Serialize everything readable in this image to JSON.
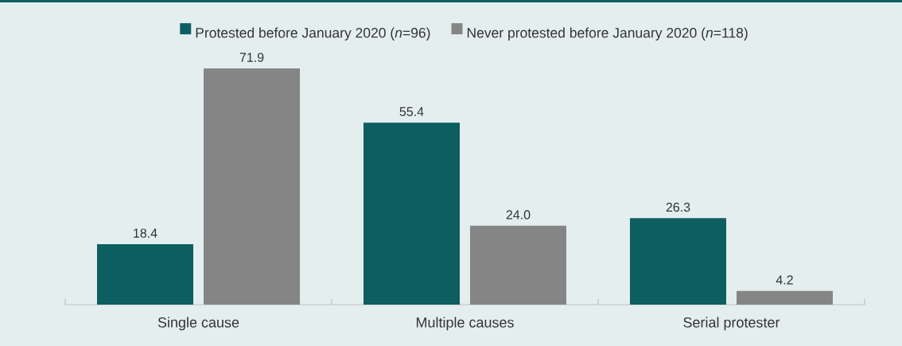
{
  "chart_data": {
    "type": "bar",
    "categories": [
      "Single cause",
      "Multiple causes",
      "Serial protester"
    ],
    "series": [
      {
        "name": "Protested before January 2020 (*n*=96)",
        "color": "#0d5e61",
        "values": [
          18.4,
          55.4,
          26.3
        ],
        "value_labels": [
          "18.4",
          "55.4",
          "26.3"
        ]
      },
      {
        "name": "Never protested before January 2020 (*n*=118)",
        "color": "#858585",
        "values": [
          71.9,
          24.0,
          4.2
        ],
        "value_labels": [
          "71.9",
          "24.0",
          "4.2"
        ]
      }
    ],
    "legend": "top"
  }
}
